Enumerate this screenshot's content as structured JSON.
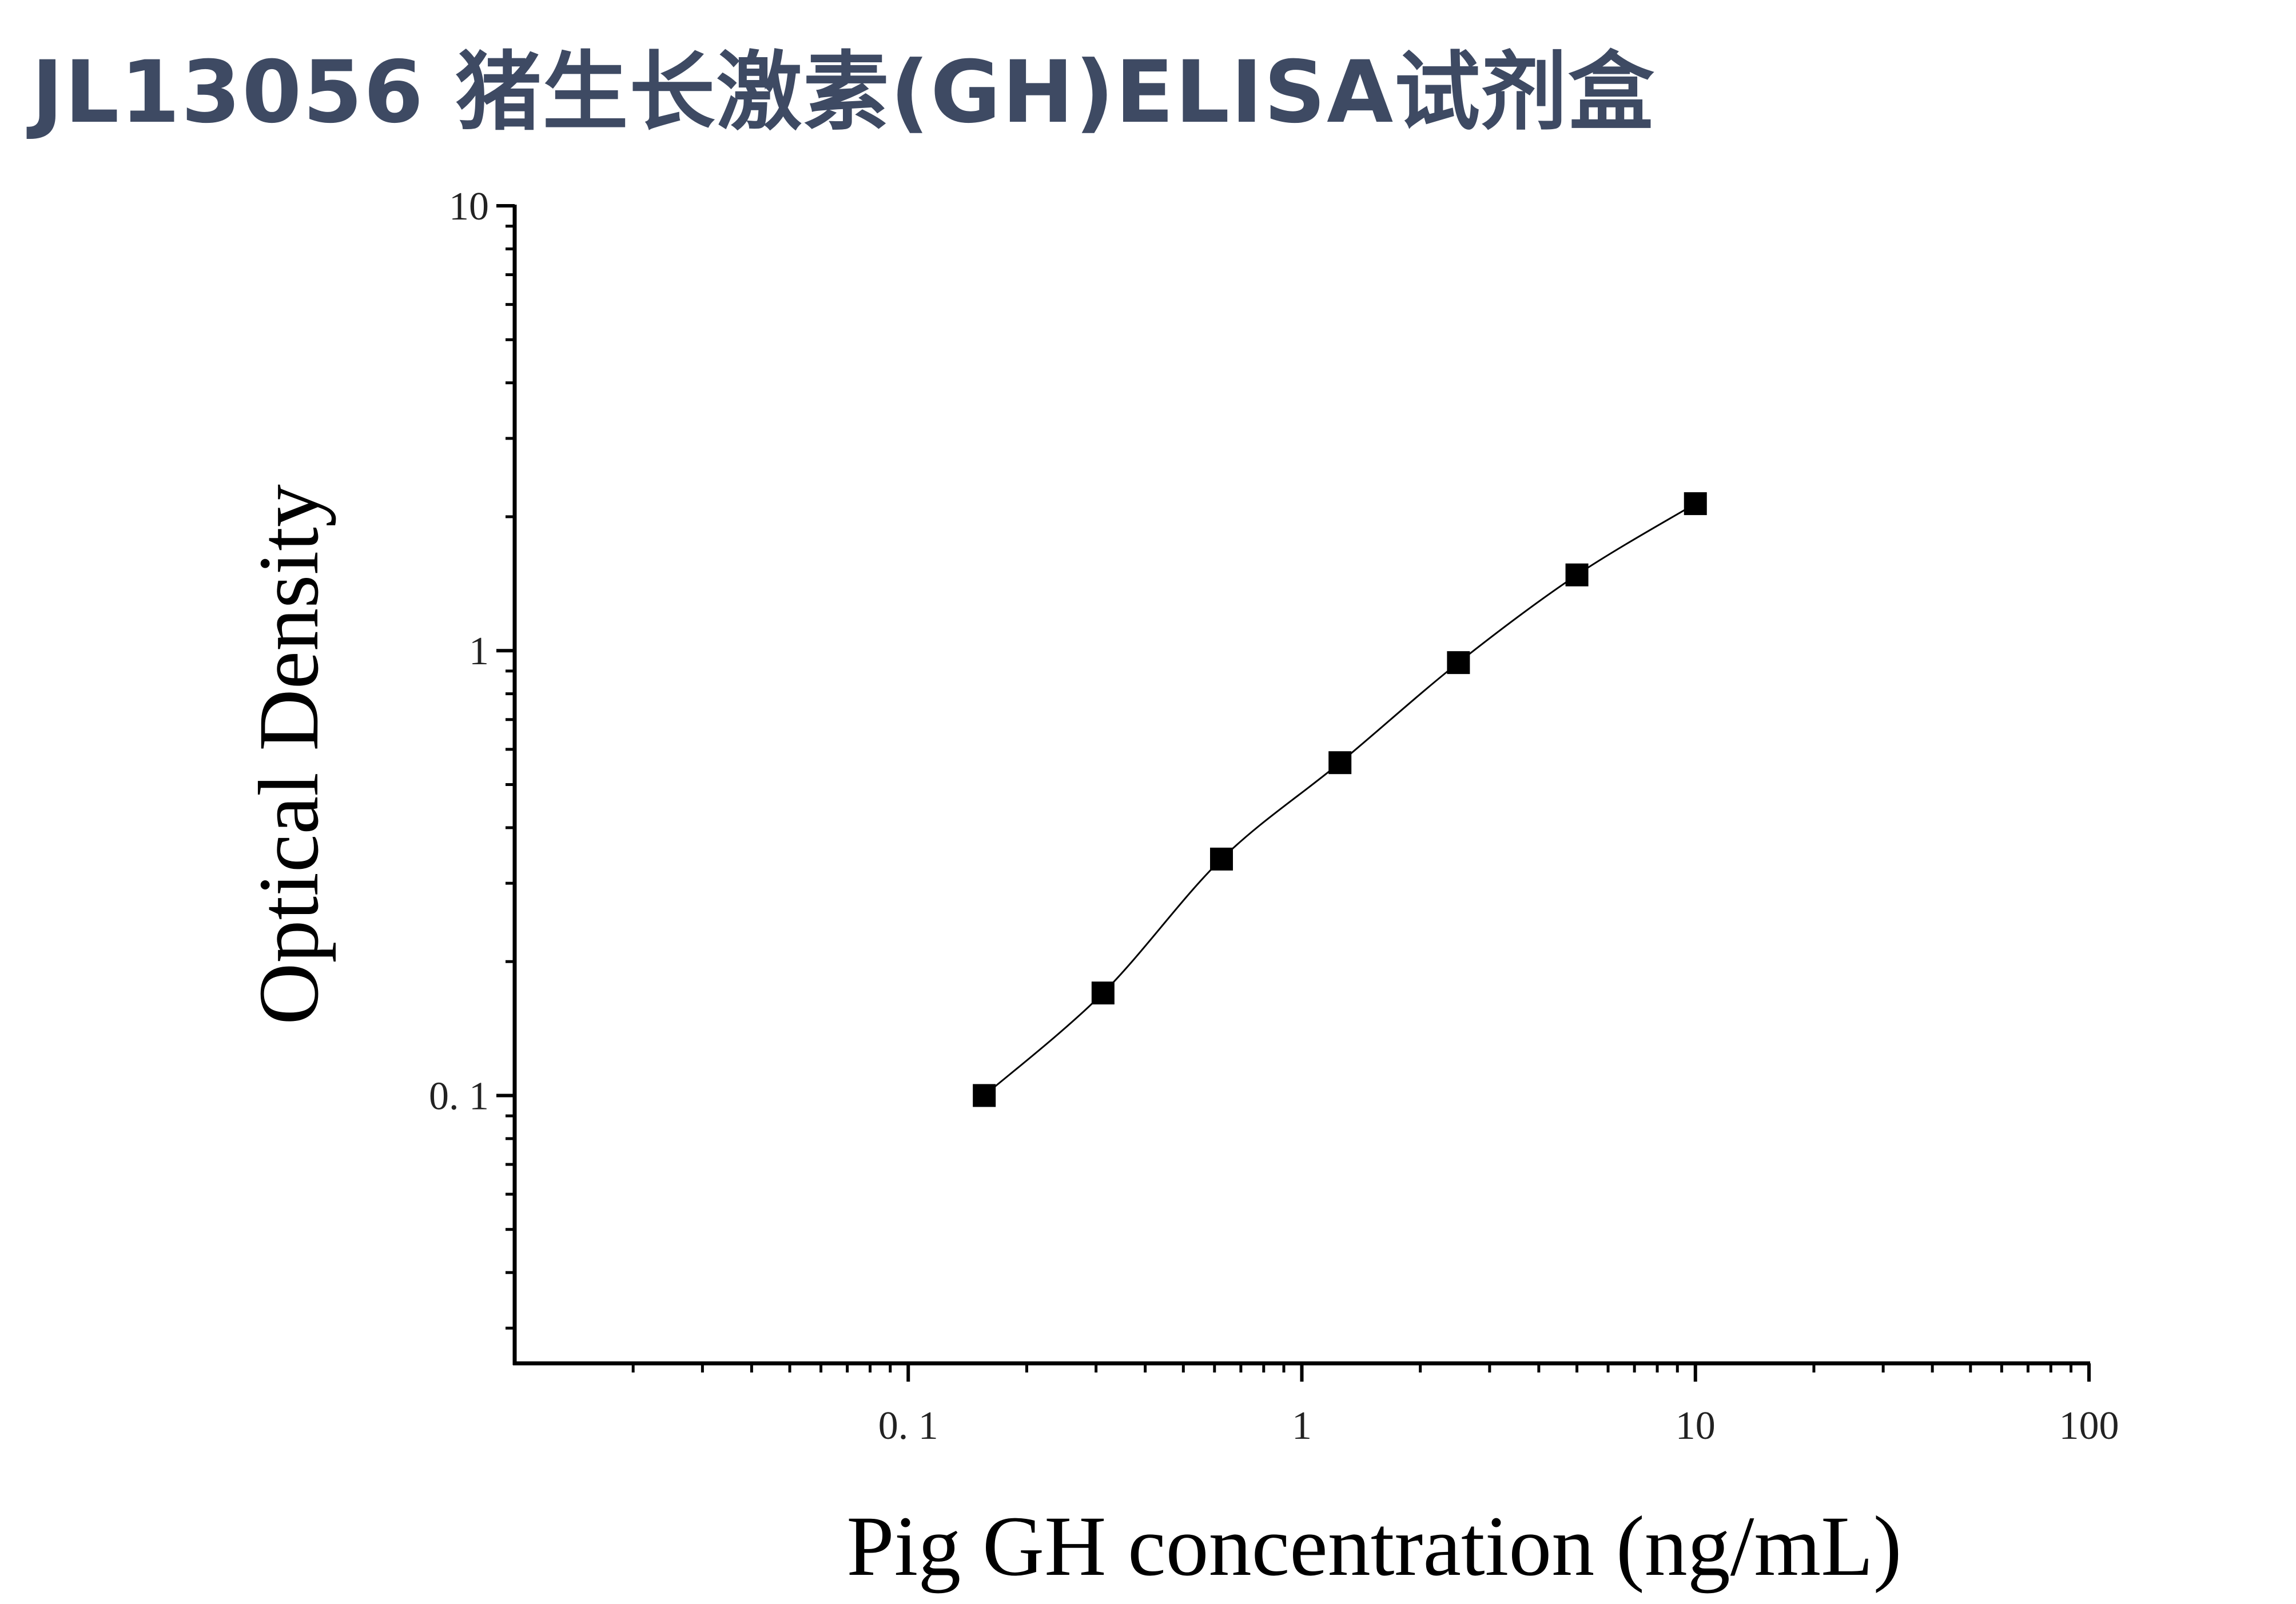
{
  "title": "JL13056 猪生长激素(GH)ELISA试剂盒",
  "chart_data": {
    "type": "scatter",
    "title": "",
    "xlabel": "Pig GH concentration (ng/mL)",
    "ylabel": "Optical Density",
    "x_scale": "log",
    "y_scale": "log",
    "xlim": [
      0.01,
      100
    ],
    "ylim": [
      0.025,
      10
    ],
    "x_ticks": [
      0.1,
      1,
      10,
      100
    ],
    "x_tick_labels": [
      "0. 1",
      "1",
      "10",
      "100"
    ],
    "y_ticks": [
      0.1,
      1,
      10
    ],
    "y_tick_labels": [
      "0. 1",
      "1",
      "10"
    ],
    "grid": false,
    "legend": "none",
    "marker": "square",
    "marker_color": "#000000",
    "line_color": "#000000",
    "series": [
      {
        "x": [
          0.156,
          0.3125,
          0.625,
          1.25,
          2.5,
          5,
          10
        ],
        "y": [
          0.1,
          0.17,
          0.34,
          0.56,
          0.94,
          1.48,
          2.14
        ]
      }
    ]
  }
}
